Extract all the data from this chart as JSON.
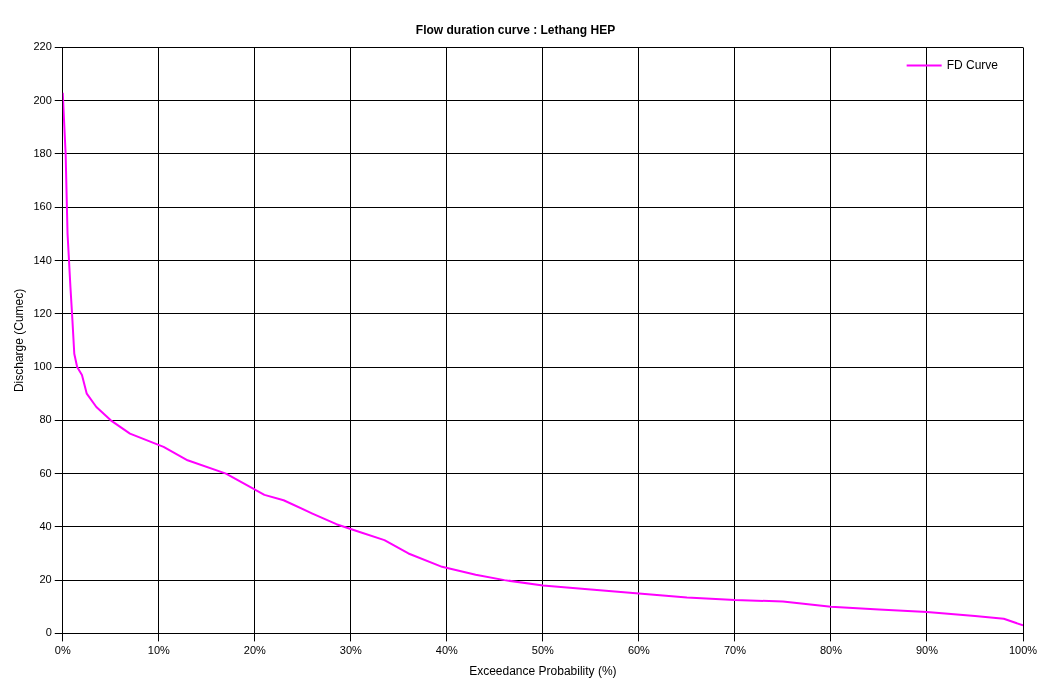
{
  "chart_data": {
    "type": "line",
    "title": "Flow duration curve : Lethang HEP",
    "xlabel": "Exceedance Probability (%)",
    "ylabel": "Discharge (Cumec)",
    "x": [
      0,
      0.3,
      0.5,
      0.8,
      1,
      1.2,
      1.5,
      2,
      2.5,
      3.5,
      5,
      7,
      10.5,
      13,
      17,
      19.5,
      21,
      23,
      26,
      28.5,
      31,
      33.5,
      36,
      39.5,
      43,
      46,
      50,
      55,
      60,
      65,
      70,
      75,
      80,
      85,
      90,
      95,
      98,
      100
    ],
    "series": [
      {
        "name": "FD Curve",
        "color": "#ff00ff",
        "values": [
          203,
          180,
          150,
          130,
          118,
          105,
          100,
          97,
          90,
          85,
          80,
          75,
          70,
          65,
          60,
          55,
          52,
          50,
          45,
          41,
          38,
          35,
          30,
          25,
          22,
          20,
          18,
          16.5,
          15,
          13.5,
          12.5,
          12,
          10,
          9,
          8,
          6.5,
          5.5,
          3
        ]
      }
    ],
    "xlim": [
      0,
      100
    ],
    "xticks": [
      {
        "value": 0,
        "label": "0%"
      },
      {
        "value": 10,
        "label": "10%"
      },
      {
        "value": 20,
        "label": "20%"
      },
      {
        "value": 30,
        "label": "30%"
      },
      {
        "value": 40,
        "label": "40%"
      },
      {
        "value": 50,
        "label": "50%"
      },
      {
        "value": 60,
        "label": "60%"
      },
      {
        "value": 70,
        "label": "70%"
      },
      {
        "value": 80,
        "label": "80%"
      },
      {
        "value": 90,
        "label": "90%"
      },
      {
        "value": 100,
        "label": "100%"
      }
    ],
    "ylim": [
      0,
      220
    ],
    "yticks": [
      0,
      20,
      40,
      60,
      80,
      100,
      120,
      140,
      160,
      180,
      200,
      220
    ],
    "grid": true,
    "legend": "top right",
    "marker": "none",
    "line_style": "solid"
  }
}
